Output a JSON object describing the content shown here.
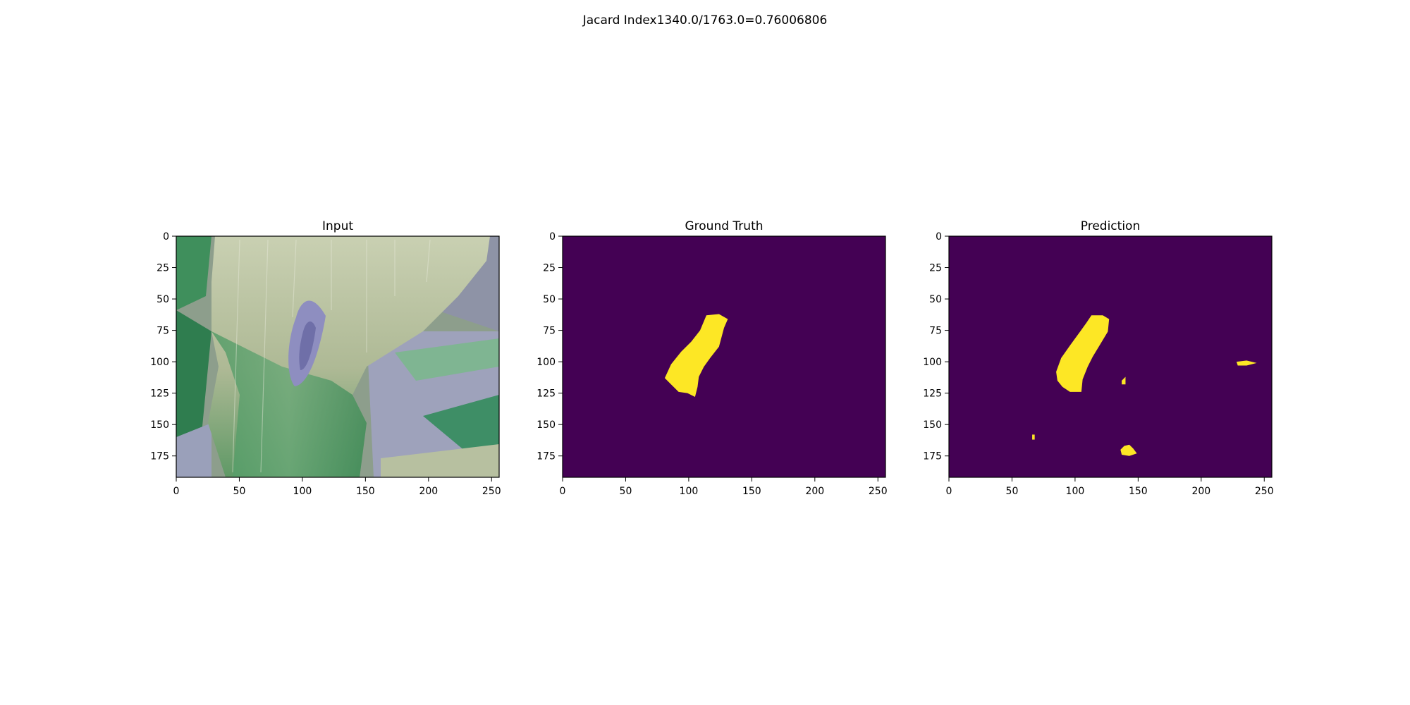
{
  "figure": {
    "suptitle": "Jacard Index1340.0/1763.0=0.76006806"
  },
  "chart_data": [
    {
      "type": "heatmap",
      "title": "Input",
      "content": "rgb-image",
      "xlim": [
        0,
        256
      ],
      "ylim": [
        192,
        0
      ],
      "xticks": [
        0,
        50,
        100,
        150,
        200,
        250
      ],
      "yticks": [
        0,
        25,
        50,
        75,
        100,
        125,
        150,
        175
      ],
      "xlabel": "",
      "ylabel": ""
    },
    {
      "type": "heatmap",
      "title": "Ground Truth",
      "content": "binary-mask",
      "colormap": "viridis",
      "colors": {
        "background": "#440154",
        "foreground": "#fde725"
      },
      "xlim": [
        0,
        256
      ],
      "ylim": [
        192,
        0
      ],
      "xticks": [
        0,
        50,
        100,
        150,
        200,
        250
      ],
      "yticks": [
        0,
        25,
        50,
        75,
        100,
        125,
        150,
        175
      ],
      "xlabel": "",
      "ylabel": "",
      "regions": [
        {
          "polygon": [
            [
              114,
              63
            ],
            [
              124,
              62
            ],
            [
              131,
              66
            ],
            [
              128,
              73
            ],
            [
              124,
              88
            ],
            [
              117,
              97
            ],
            [
              112,
              104
            ],
            [
              108,
              112
            ],
            [
              107,
              120
            ],
            [
              105,
              128
            ],
            [
              99,
              125
            ],
            [
              92,
              124
            ],
            [
              86,
              118
            ],
            [
              81,
              113
            ],
            [
              86,
              102
            ],
            [
              94,
              92
            ],
            [
              102,
              84
            ],
            [
              109,
              75
            ]
          ]
        }
      ]
    },
    {
      "type": "heatmap",
      "title": "Prediction",
      "content": "binary-mask",
      "colormap": "viridis",
      "colors": {
        "background": "#440154",
        "foreground": "#fde725"
      },
      "xlim": [
        0,
        256
      ],
      "ylim": [
        192,
        0
      ],
      "xticks": [
        0,
        50,
        100,
        150,
        200,
        250
      ],
      "yticks": [
        0,
        25,
        50,
        75,
        100,
        125,
        150,
        175
      ],
      "xlabel": "",
      "ylabel": "",
      "regions": [
        {
          "polygon": [
            [
              113,
              63
            ],
            [
              122,
              63
            ],
            [
              127,
              66
            ],
            [
              126,
              76
            ],
            [
              120,
              86
            ],
            [
              114,
              96
            ],
            [
              110,
              104
            ],
            [
              106,
              114
            ],
            [
              105,
              124
            ],
            [
              96,
              124
            ],
            [
              90,
              120
            ],
            [
              86,
              115
            ],
            [
              85,
              108
            ],
            [
              89,
              97
            ],
            [
              96,
              87
            ],
            [
              104,
              76
            ],
            [
              109,
              69
            ]
          ]
        },
        {
          "polygon": [
            [
              137,
              115
            ],
            [
              140,
              112
            ],
            [
              140,
              118
            ],
            [
              137,
              118
            ]
          ]
        },
        {
          "polygon": [
            [
              228,
              100
            ],
            [
              236,
              99
            ],
            [
              244,
              101
            ],
            [
              236,
              103
            ],
            [
              229,
              103
            ]
          ]
        },
        {
          "polygon": [
            [
              66,
              158
            ],
            [
              68,
              158
            ],
            [
              68,
              162
            ],
            [
              66,
              162
            ]
          ]
        },
        {
          "polygon": [
            [
              139,
              167
            ],
            [
              143,
              166
            ],
            [
              146,
              169
            ],
            [
              149,
              173
            ],
            [
              143,
              175
            ],
            [
              137,
              174
            ],
            [
              136,
              170
            ]
          ]
        }
      ]
    }
  ]
}
